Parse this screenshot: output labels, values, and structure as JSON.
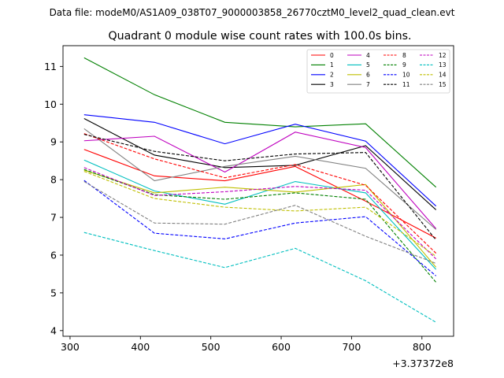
{
  "figure": {
    "suptitle": "Data file: modeM0/AS1A09_038T07_9000003858_26770cztM0_level2_quad_clean.evt"
  },
  "chart_data": {
    "type": "line",
    "title": "Quadrant 0 module wise count rates with 100.0s bins.",
    "xlabel": "",
    "ylabel": "",
    "x_offset_label": "+3.37372e8",
    "x": [
      320,
      420,
      520,
      620,
      720,
      820
    ],
    "xlim": [
      290,
      845
    ],
    "ylim": [
      3.85,
      11.55
    ],
    "xticks": [
      300,
      400,
      500,
      600,
      700,
      800
    ],
    "yticks": [
      4,
      5,
      6,
      7,
      8,
      9,
      10,
      11
    ],
    "xtick_labels": [
      "300",
      "400",
      "500",
      "600",
      "700",
      "800"
    ],
    "ytick_labels": [
      "4",
      "5",
      "6",
      "7",
      "8",
      "9",
      "10",
      "11"
    ],
    "grid": false,
    "legend_position": "top-right",
    "series": [
      {
        "name": "0",
        "color": "#ff0000",
        "dash": "solid",
        "values": [
          8.8,
          8.1,
          7.97,
          8.35,
          7.43,
          6.45
        ]
      },
      {
        "name": "1",
        "color": "#008000",
        "dash": "solid",
        "values": [
          11.23,
          10.25,
          9.52,
          9.4,
          9.48,
          7.8
        ]
      },
      {
        "name": "2",
        "color": "#0000ff",
        "dash": "solid",
        "values": [
          9.72,
          9.52,
          8.95,
          9.47,
          9.02,
          7.3
        ]
      },
      {
        "name": "3",
        "color": "#000000",
        "dash": "solid",
        "values": [
          9.62,
          8.65,
          8.32,
          8.38,
          8.9,
          7.2
        ]
      },
      {
        "name": "4",
        "color": "#bf00bf",
        "dash": "solid",
        "values": [
          9.03,
          9.15,
          8.2,
          9.26,
          8.85,
          6.7
        ]
      },
      {
        "name": "5",
        "color": "#00bfbf",
        "dash": "solid",
        "values": [
          8.52,
          7.7,
          7.35,
          7.95,
          7.65,
          5.62
        ]
      },
      {
        "name": "6",
        "color": "#bfbf00",
        "dash": "solid",
        "values": [
          8.25,
          7.65,
          7.8,
          7.67,
          7.87,
          5.68
        ]
      },
      {
        "name": "7",
        "color": "#808080",
        "dash": "solid",
        "values": [
          9.35,
          7.97,
          8.35,
          8.62,
          8.3,
          6.68
        ]
      },
      {
        "name": "8",
        "color": "#ff0000",
        "dash": "dashed",
        "values": [
          9.22,
          8.55,
          8.05,
          8.4,
          7.85,
          6.05
        ]
      },
      {
        "name": "9",
        "color": "#008000",
        "dash": "dashed",
        "values": [
          8.27,
          7.6,
          7.48,
          7.65,
          7.48,
          5.28
        ]
      },
      {
        "name": "10",
        "color": "#0000ff",
        "dash": "dashed",
        "values": [
          7.98,
          6.58,
          6.43,
          6.85,
          7.02,
          5.45
        ]
      },
      {
        "name": "11",
        "color": "#000000",
        "dash": "dashed",
        "values": [
          9.2,
          8.75,
          8.5,
          8.68,
          8.72,
          6.4
        ]
      },
      {
        "name": "12",
        "color": "#bf00bf",
        "dash": "dashed",
        "values": [
          8.32,
          7.58,
          7.68,
          7.82,
          7.72,
          5.9
        ]
      },
      {
        "name": "13",
        "color": "#00bfbf",
        "dash": "dashed",
        "values": [
          6.6,
          6.12,
          5.67,
          6.18,
          5.32,
          4.22
        ]
      },
      {
        "name": "14",
        "color": "#bfbf00",
        "dash": "dashed",
        "values": [
          8.22,
          7.5,
          7.27,
          7.17,
          7.27,
          5.97
        ]
      },
      {
        "name": "15",
        "color": "#808080",
        "dash": "dashed",
        "values": [
          7.95,
          6.85,
          6.82,
          7.32,
          6.5,
          5.78
        ]
      }
    ]
  }
}
